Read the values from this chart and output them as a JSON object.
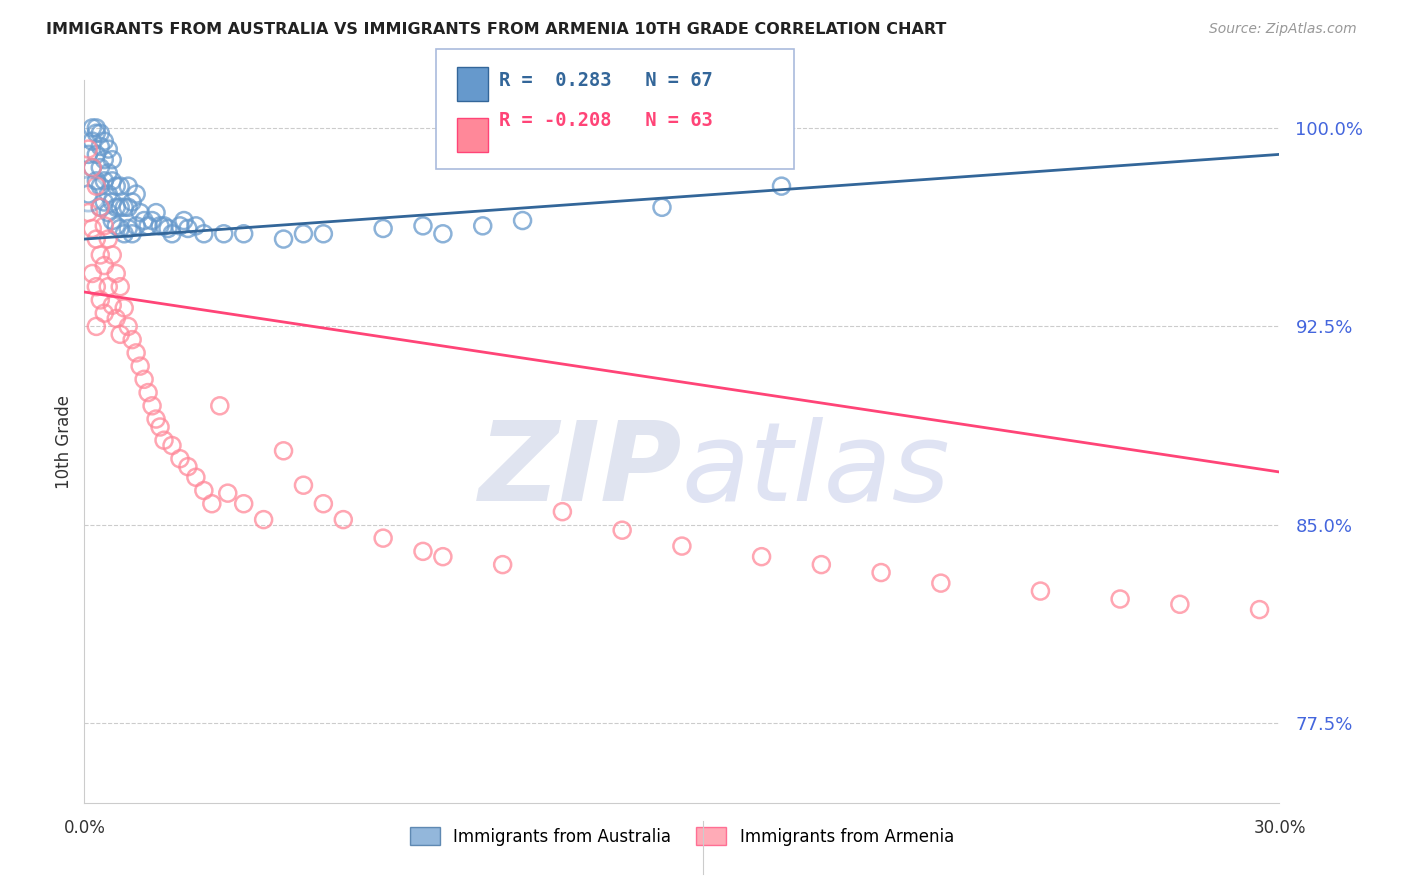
{
  "title": "IMMIGRANTS FROM AUSTRALIA VS IMMIGRANTS FROM ARMENIA 10TH GRADE CORRELATION CHART",
  "source": "Source: ZipAtlas.com",
  "ylabel": "10th Grade",
  "ylabel_ticks": [
    100.0,
    92.5,
    85.0,
    77.5
  ],
  "xlim": [
    0.0,
    0.3
  ],
  "ylim": [
    0.745,
    1.018
  ],
  "australia_R": 0.283,
  "australia_N": 67,
  "armenia_R": -0.208,
  "armenia_N": 63,
  "australia_color": "#6699CC",
  "armenia_color": "#FF8899",
  "australia_line_color": "#336699",
  "armenia_line_color": "#FF4477",
  "background_color": "#FFFFFF",
  "grid_color": "#CCCCCC",
  "australia_points_x": [
    0.001,
    0.001,
    0.002,
    0.002,
    0.002,
    0.003,
    0.003,
    0.003,
    0.003,
    0.004,
    0.004,
    0.004,
    0.004,
    0.004,
    0.005,
    0.005,
    0.005,
    0.005,
    0.006,
    0.006,
    0.006,
    0.006,
    0.007,
    0.007,
    0.007,
    0.007,
    0.008,
    0.008,
    0.008,
    0.009,
    0.009,
    0.009,
    0.01,
    0.01,
    0.011,
    0.011,
    0.011,
    0.012,
    0.012,
    0.013,
    0.013,
    0.014,
    0.015,
    0.016,
    0.017,
    0.018,
    0.019,
    0.02,
    0.021,
    0.022,
    0.024,
    0.025,
    0.026,
    0.028,
    0.03,
    0.035,
    0.04,
    0.05,
    0.055,
    0.06,
    0.075,
    0.085,
    0.09,
    0.1,
    0.11,
    0.145,
    0.175
  ],
  "australia_points_y": [
    0.975,
    0.99,
    0.985,
    0.995,
    1.0,
    0.98,
    0.99,
    0.998,
    1.0,
    0.97,
    0.978,
    0.985,
    0.993,
    0.998,
    0.972,
    0.98,
    0.988,
    0.995,
    0.968,
    0.975,
    0.983,
    0.992,
    0.965,
    0.972,
    0.98,
    0.988,
    0.963,
    0.97,
    0.978,
    0.962,
    0.97,
    0.978,
    0.96,
    0.97,
    0.962,
    0.97,
    0.978,
    0.96,
    0.972,
    0.963,
    0.975,
    0.968,
    0.965,
    0.963,
    0.965,
    0.968,
    0.963,
    0.963,
    0.962,
    0.96,
    0.963,
    0.965,
    0.962,
    0.963,
    0.96,
    0.96,
    0.96,
    0.958,
    0.96,
    0.96,
    0.962,
    0.963,
    0.96,
    0.963,
    0.965,
    0.97,
    0.978
  ],
  "armenia_points_x": [
    0.001,
    0.001,
    0.002,
    0.002,
    0.002,
    0.003,
    0.003,
    0.003,
    0.003,
    0.004,
    0.004,
    0.004,
    0.005,
    0.005,
    0.005,
    0.006,
    0.006,
    0.007,
    0.007,
    0.008,
    0.008,
    0.009,
    0.009,
    0.01,
    0.011,
    0.012,
    0.013,
    0.014,
    0.015,
    0.016,
    0.017,
    0.018,
    0.019,
    0.02,
    0.022,
    0.024,
    0.026,
    0.028,
    0.03,
    0.032,
    0.034,
    0.036,
    0.04,
    0.045,
    0.05,
    0.055,
    0.06,
    0.065,
    0.075,
    0.085,
    0.09,
    0.105,
    0.12,
    0.135,
    0.15,
    0.17,
    0.185,
    0.2,
    0.215,
    0.24,
    0.26,
    0.275,
    0.295
  ],
  "armenia_points_y": [
    0.992,
    0.968,
    0.985,
    0.962,
    0.945,
    0.978,
    0.958,
    0.94,
    0.925,
    0.97,
    0.952,
    0.935,
    0.963,
    0.948,
    0.93,
    0.958,
    0.94,
    0.952,
    0.933,
    0.945,
    0.928,
    0.94,
    0.922,
    0.932,
    0.925,
    0.92,
    0.915,
    0.91,
    0.905,
    0.9,
    0.895,
    0.89,
    0.887,
    0.882,
    0.88,
    0.875,
    0.872,
    0.868,
    0.863,
    0.858,
    0.895,
    0.862,
    0.858,
    0.852,
    0.878,
    0.865,
    0.858,
    0.852,
    0.845,
    0.84,
    0.838,
    0.835,
    0.855,
    0.848,
    0.842,
    0.838,
    0.835,
    0.832,
    0.828,
    0.825,
    0.822,
    0.82,
    0.818
  ],
  "aus_line_x0": 0.0,
  "aus_line_x1": 0.3,
  "aus_line_y0": 0.958,
  "aus_line_y1": 0.99,
  "arm_line_x0": 0.0,
  "arm_line_x1": 0.3,
  "arm_line_y0": 0.938,
  "arm_line_y1": 0.87
}
